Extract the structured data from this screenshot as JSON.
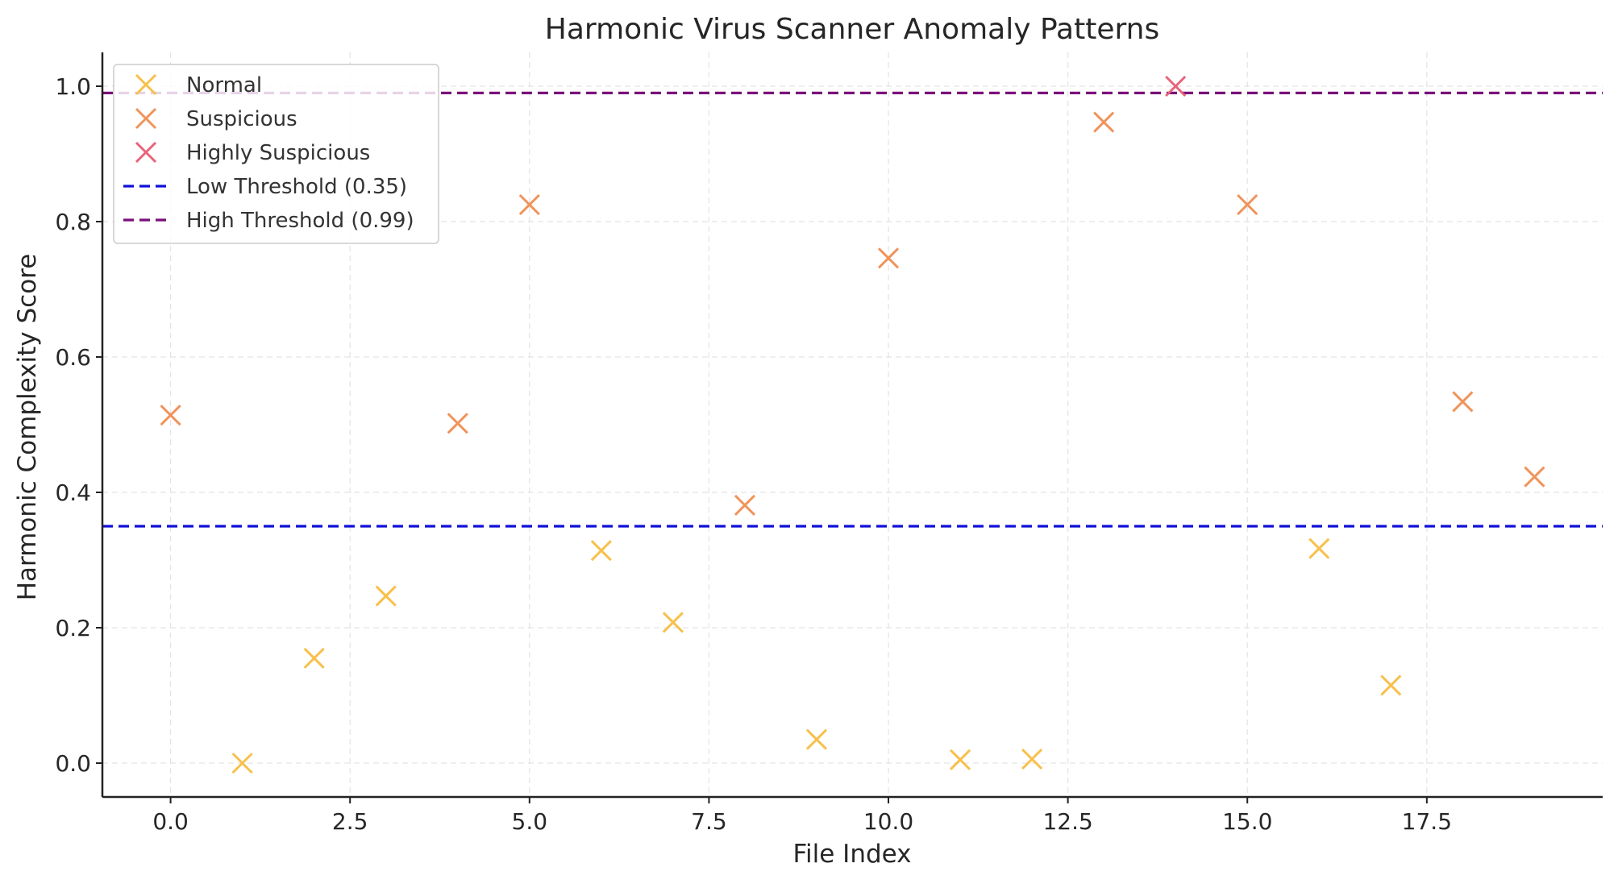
{
  "chart_data": {
    "type": "scatter",
    "title": "Harmonic Virus Scanner Anomaly Patterns",
    "xlabel": "File Index",
    "ylabel": "Harmonic Complexity Score",
    "xlim": [
      -0.95,
      19.95
    ],
    "ylim": [
      -0.05,
      1.05
    ],
    "xticks": [
      {
        "value": 0.0,
        "label": "0.0"
      },
      {
        "value": 2.5,
        "label": "2.5"
      },
      {
        "value": 5.0,
        "label": "5.0"
      },
      {
        "value": 7.5,
        "label": "7.5"
      },
      {
        "value": 10.0,
        "label": "10.0"
      },
      {
        "value": 12.5,
        "label": "12.5"
      },
      {
        "value": 15.0,
        "label": "15.0"
      },
      {
        "value": 17.5,
        "label": "17.5"
      }
    ],
    "yticks": [
      {
        "value": 0.0,
        "label": "0.0"
      },
      {
        "value": 0.2,
        "label": "0.2"
      },
      {
        "value": 0.4,
        "label": "0.4"
      },
      {
        "value": 0.6,
        "label": "0.6"
      },
      {
        "value": 0.8,
        "label": "0.8"
      },
      {
        "value": 1.0,
        "label": "1.0"
      }
    ],
    "grid": true,
    "legend_position": "top-left",
    "series": [
      {
        "name": "Normal",
        "marker": "x",
        "color": "#F8C04A",
        "points": [
          [
            1,
            0.0
          ],
          [
            2,
            0.155
          ],
          [
            3,
            0.247
          ],
          [
            6,
            0.314
          ],
          [
            7,
            0.208
          ],
          [
            9,
            0.035
          ],
          [
            11,
            0.005
          ],
          [
            12,
            0.006
          ],
          [
            16,
            0.317
          ],
          [
            17,
            0.115
          ]
        ]
      },
      {
        "name": "Suspicious",
        "marker": "x",
        "color": "#F0935A",
        "points": [
          [
            0,
            0.514
          ],
          [
            4,
            0.502
          ],
          [
            5,
            0.825
          ],
          [
            8,
            0.381
          ],
          [
            10,
            0.746
          ],
          [
            13,
            0.947
          ],
          [
            15,
            0.825
          ],
          [
            18,
            0.534
          ],
          [
            19,
            0.423
          ]
        ]
      },
      {
        "name": "Highly Suspicious",
        "marker": "x",
        "color": "#E8637A",
        "points": [
          [
            14,
            1.0
          ]
        ]
      }
    ],
    "thresholds": [
      {
        "name": "Low Threshold (0.35)",
        "value": 0.35,
        "color": "#1010D8",
        "style": "dashed"
      },
      {
        "name": "High Threshold (0.99)",
        "value": 0.99,
        "color": "#7A0F7A",
        "style": "dashed"
      }
    ]
  }
}
